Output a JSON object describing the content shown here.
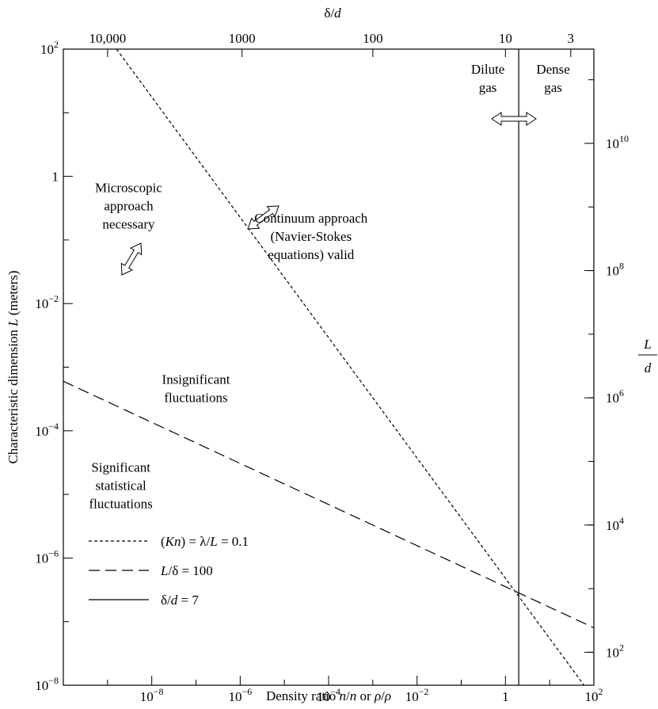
{
  "chart_data": {
    "type": "line",
    "xlabel": "Density ratio n/n or ρ/ρ",
    "ylabel": "Characteristic dimension L (meters)",
    "top_axis_label": "δ/d",
    "right_axis_label": {
      "numerator": "L",
      "denominator": "d"
    },
    "x_scale": "log",
    "y_scale": "log",
    "xlim": [
      1e-10,
      100
    ],
    "ylim": [
      1e-08,
      100
    ],
    "grid": false,
    "legend_position": "bottom-left",
    "x_ticks": [
      {
        "value": 1e-08,
        "base": "10",
        "exp": "−8"
      },
      {
        "value": 1e-06,
        "base": "10",
        "exp": "−6"
      },
      {
        "value": 0.0001,
        "base": "10",
        "exp": "−4"
      },
      {
        "value": 0.01,
        "base": "10",
        "exp": "−2"
      },
      {
        "value": 1,
        "base": "1",
        "exp": ""
      },
      {
        "value": 100,
        "base": "10",
        "exp": "2"
      }
    ],
    "y_ticks": [
      {
        "value": 100,
        "base": "10",
        "exp": "2"
      },
      {
        "value": 1,
        "base": "1",
        "exp": ""
      },
      {
        "value": 0.01,
        "base": "10",
        "exp": "−2"
      },
      {
        "value": 0.0001,
        "base": "10",
        "exp": "−4"
      },
      {
        "value": 1e-06,
        "base": "10",
        "exp": "−6"
      },
      {
        "value": 1e-08,
        "base": "10",
        "exp": "−8"
      }
    ],
    "top_ticks": [
      {
        "label": "10,000",
        "x_value": 1e-09
      },
      {
        "label": "1000",
        "x_value": 1.1e-06
      },
      {
        "label": "100",
        "x_value": 0.001
      },
      {
        "label": "10",
        "x_value": 1.0
      },
      {
        "label": "3",
        "x_value": 30
      }
    ],
    "right_ticks": [
      {
        "base": "10",
        "exp": "10",
        "y_value": 3.3
      },
      {
        "base": "10",
        "exp": "8",
        "y_value": 0.033
      },
      {
        "base": "10",
        "exp": "6",
        "y_value": 0.00033
      },
      {
        "base": "10",
        "exp": "4",
        "y_value": 3.3e-06
      },
      {
        "base": "10",
        "exp": "2",
        "y_value": 3.3e-08
      }
    ],
    "series": [
      {
        "name_parts": [
          "(",
          "Kn",
          ") = λ/",
          "L",
          " = 0.1"
        ],
        "style": "dotted",
        "points": [
          [
            1.6e-09,
            100
          ],
          [
            60,
            1e-08
          ]
        ]
      },
      {
        "name_parts": [
          "",
          "L",
          "/δ = 100"
        ],
        "style": "dashed",
        "points": [
          [
            1e-10,
            0.0006
          ],
          [
            100,
            8e-08
          ]
        ]
      },
      {
        "name_parts": [
          "δ/",
          "d",
          " = 7"
        ],
        "style": "solid",
        "points": [
          [
            2,
            1e-08
          ],
          [
            2,
            100
          ]
        ]
      }
    ],
    "annotations": [
      {
        "lines": [
          "Microscopic",
          "approach",
          "necessary"
        ],
        "x": 3e-09,
        "y": 0.3
      },
      {
        "lines": [
          "Continuum approach",
          "(Navier-Stokes",
          "equations) valid"
        ],
        "x": 4e-05,
        "y": 0.1
      },
      {
        "lines": [
          "Insignificant",
          "fluctuations"
        ],
        "x": 1e-07,
        "y": 0.0004
      },
      {
        "lines": [
          "Significant",
          "statistical",
          "fluctuations"
        ],
        "x": 2e-09,
        "y": 1.2e-05
      },
      {
        "lines": [
          "Dilute",
          "gas"
        ],
        "x": 0.4,
        "y": 30
      },
      {
        "lines": [
          "Dense",
          "gas"
        ],
        "x": 12,
        "y": 30
      }
    ]
  }
}
